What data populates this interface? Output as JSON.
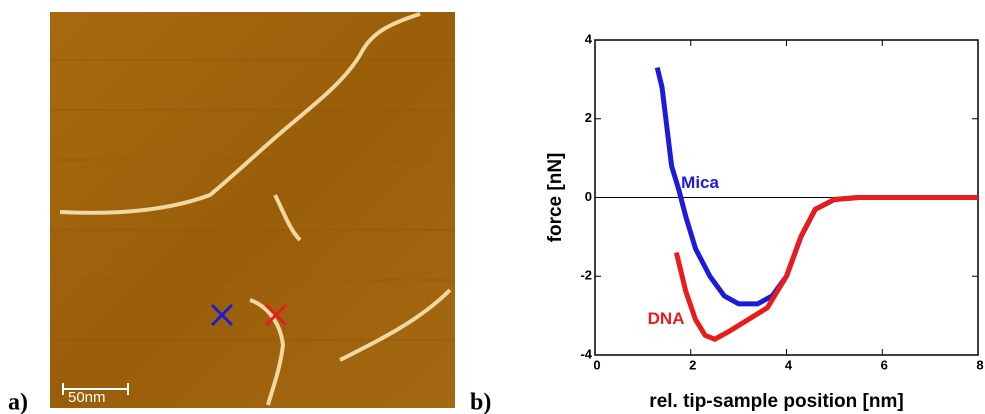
{
  "panel_a": {
    "label": "a)",
    "scale_bar": "50nm"
  },
  "panel_b": {
    "label": "b)"
  },
  "chart_data": {
    "type": "line",
    "xlabel": "rel. tip-sample position [nm]",
    "ylabel": "force [nN]",
    "xlim": [
      0,
      8
    ],
    "ylim": [
      -4,
      4
    ],
    "xticks": [
      0,
      2,
      4,
      6,
      8
    ],
    "yticks": [
      -4,
      -2,
      0,
      2,
      4
    ],
    "zero_line": true,
    "series": [
      {
        "name": "Mica",
        "color": "#1c1cd8",
        "x": [
          1.3,
          1.4,
          1.5,
          1.6,
          1.75,
          1.9,
          2.1,
          2.4,
          2.7,
          3.0,
          3.4,
          3.7,
          4.0,
          4.3,
          4.6,
          5.0,
          5.5,
          6.5,
          8
        ],
        "values": [
          3.3,
          2.8,
          1.8,
          0.8,
          0.2,
          -0.5,
          -1.3,
          -2.0,
          -2.5,
          -2.7,
          -2.7,
          -2.5,
          -2.0,
          -1.0,
          -0.3,
          -0.05,
          0,
          0,
          0
        ]
      },
      {
        "name": "DNA",
        "color": "#e81c1c",
        "x": [
          1.7,
          1.9,
          2.1,
          2.3,
          2.5,
          2.8,
          3.2,
          3.6,
          4.0,
          4.3,
          4.6,
          5.0,
          5.5,
          6.5,
          8
        ],
        "values": [
          -1.4,
          -2.4,
          -3.1,
          -3.5,
          -3.6,
          -3.4,
          -3.1,
          -2.8,
          -2.0,
          -1.0,
          -0.3,
          -0.05,
          0,
          0,
          0
        ]
      }
    ]
  }
}
